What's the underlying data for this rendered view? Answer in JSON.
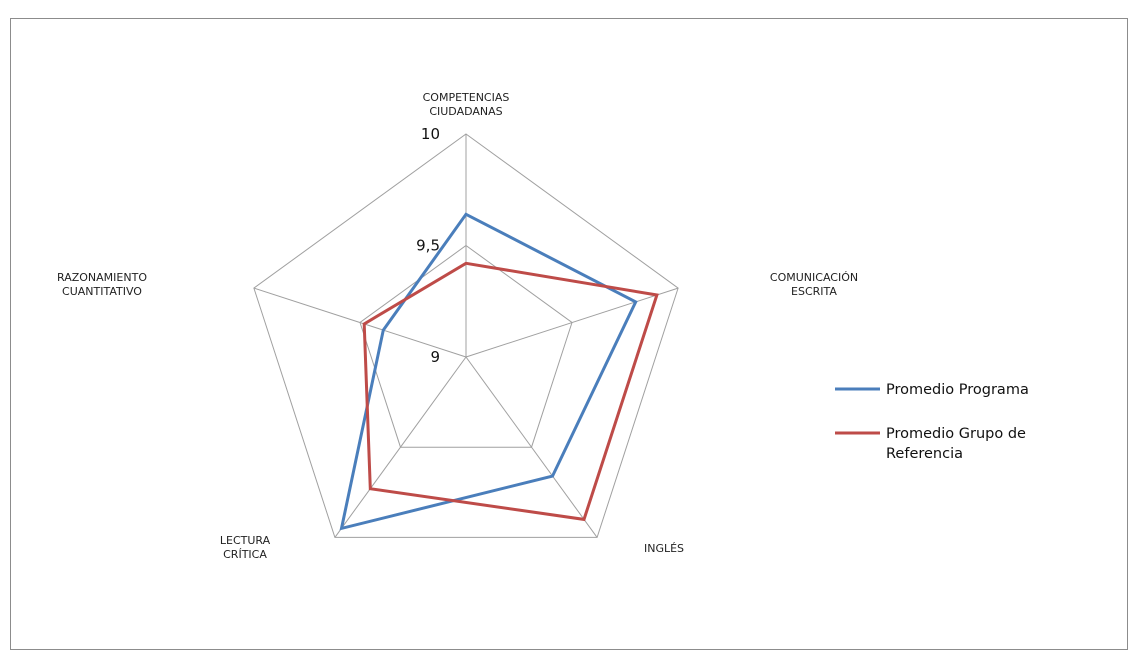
{
  "chart_data": {
    "type": "radar",
    "axes": [
      [
        "COMPETENCIAS",
        "CIUDADANAS"
      ],
      [
        "COMUNICACIÓN",
        "ESCRITA"
      ],
      [
        "INGLÉS"
      ],
      [
        "LECTURA",
        "CRÍTICA"
      ],
      [
        "RAZONAMIENTO",
        "CUANTITATIVO"
      ]
    ],
    "range": [
      9,
      10
    ],
    "ticks": [
      "9",
      "9,5",
      "10"
    ],
    "series": [
      {
        "name": "Promedio Programa",
        "color": "#4a7ebb",
        "values": [
          9.64,
          9.8,
          9.66,
          9.95,
          9.39
        ]
      },
      {
        "name": "Promedio Grupo de Referencia",
        "color": "#be4b48",
        "values": [
          9.42,
          9.9,
          9.9,
          9.73,
          9.48
        ]
      }
    ],
    "legend": {
      "position": "right",
      "entries": [
        {
          "lines": [
            "Promedio Programa"
          ]
        },
        {
          "lines": [
            "Promedio Grupo de",
            "Referencia"
          ]
        }
      ]
    },
    "grid_color": "#a0a0a0"
  }
}
